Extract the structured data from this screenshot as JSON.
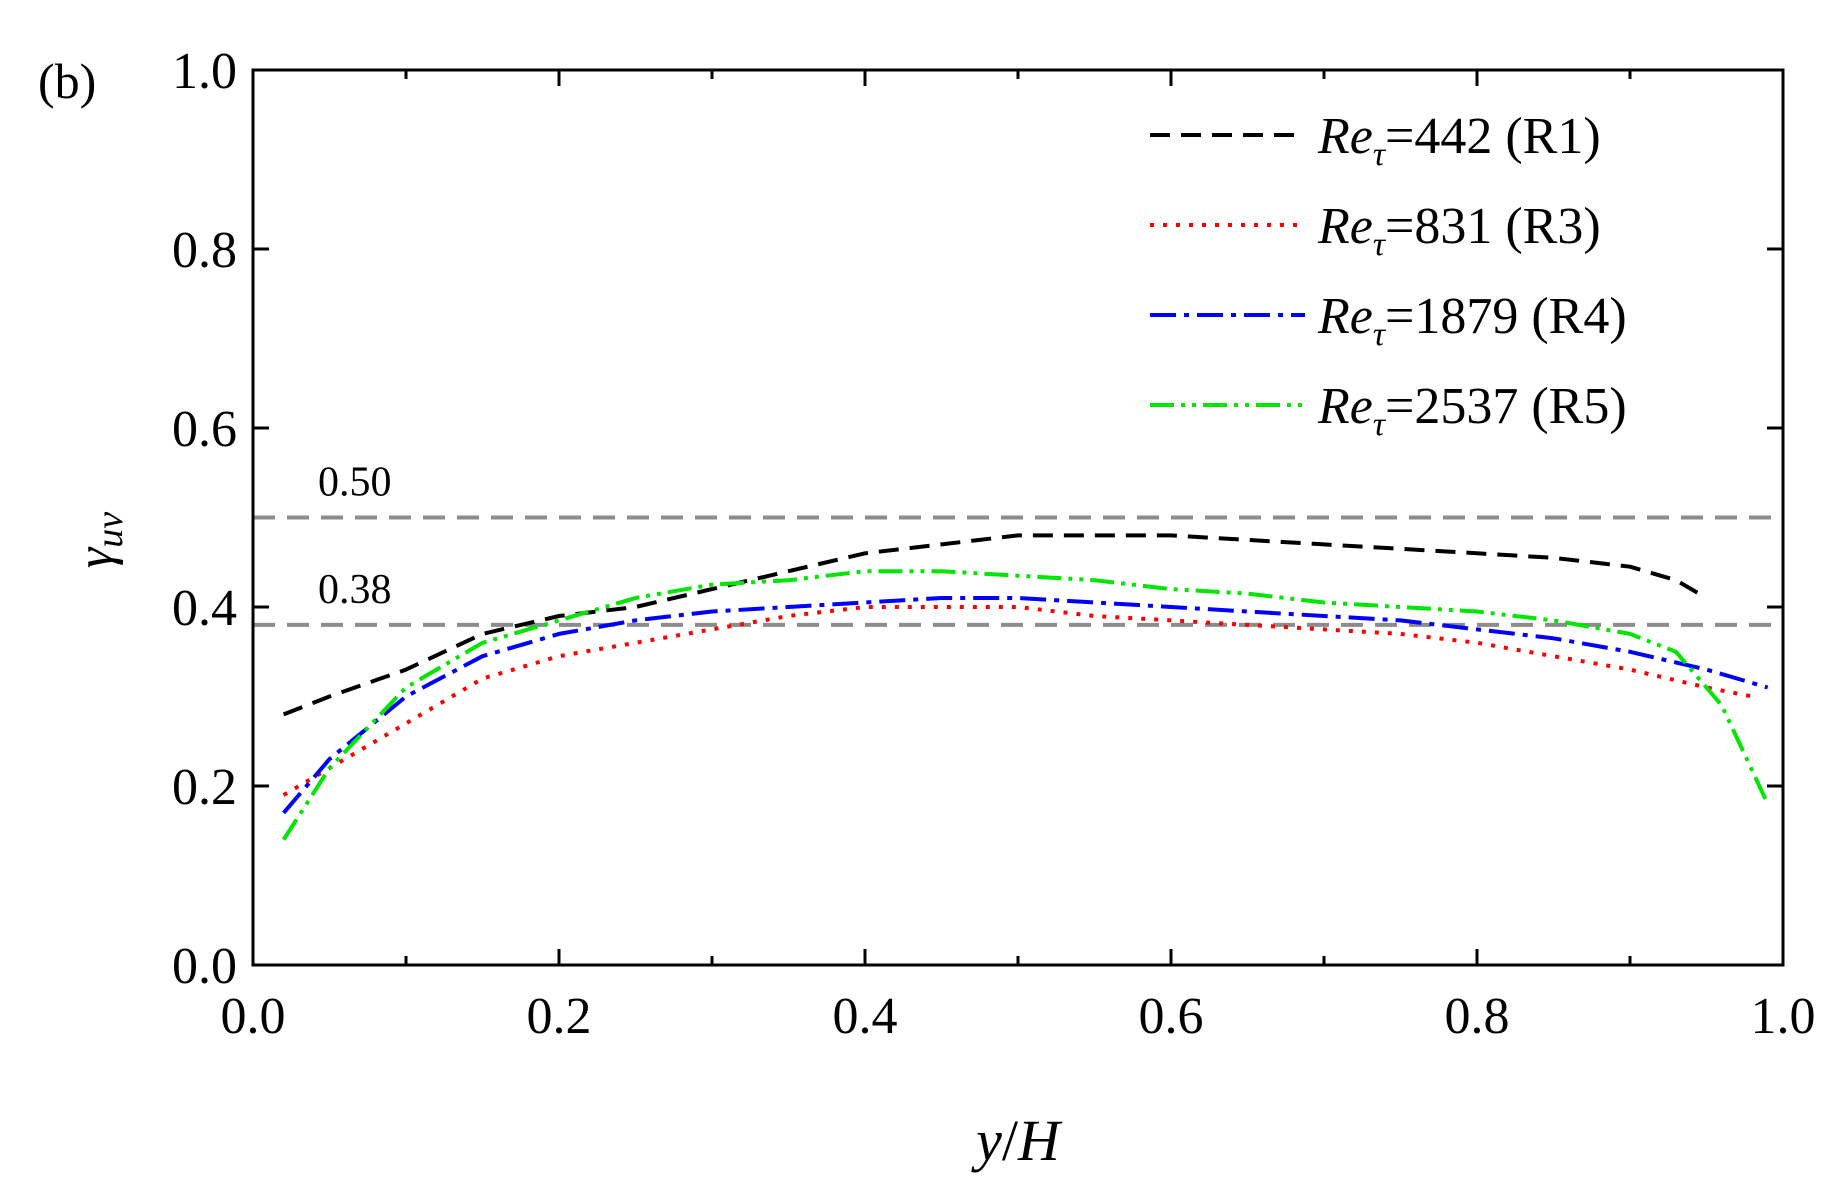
{
  "chart_data": {
    "type": "line",
    "panel_label": "(b)",
    "xlabel": "y/H",
    "ylabel": "γuv",
    "xlim": [
      0.0,
      1.0
    ],
    "ylim": [
      0.0,
      1.0
    ],
    "x_ticks": [
      "0.0",
      "0.2",
      "0.4",
      "0.6",
      "0.8",
      "1.0"
    ],
    "y_ticks": [
      "0.0",
      "0.2",
      "0.4",
      "0.6",
      "0.8",
      "1.0"
    ],
    "legend_position": "top-right",
    "reference_lines": [
      {
        "y": 0.5,
        "label": "0.50",
        "color": "#8c8c8c"
      },
      {
        "y": 0.38,
        "label": "0.38",
        "color": "#8c8c8c"
      }
    ],
    "series": [
      {
        "name": "Reτ=442 (R1)",
        "legend_suffix": "=442 (R1)",
        "color": "#000000",
        "style": "dash",
        "x": [
          0.02,
          0.05,
          0.1,
          0.15,
          0.2,
          0.25,
          0.3,
          0.35,
          0.4,
          0.45,
          0.5,
          0.55,
          0.6,
          0.65,
          0.7,
          0.75,
          0.8,
          0.85,
          0.9,
          0.93,
          0.95
        ],
        "values": [
          0.28,
          0.3,
          0.33,
          0.37,
          0.39,
          0.4,
          0.42,
          0.44,
          0.46,
          0.47,
          0.48,
          0.48,
          0.48,
          0.475,
          0.47,
          0.465,
          0.46,
          0.455,
          0.445,
          0.43,
          0.41
        ]
      },
      {
        "name": "Reτ=831 (R3)",
        "legend_suffix": "=831 (R3)",
        "color": "#ff0000",
        "style": "dot",
        "x": [
          0.02,
          0.05,
          0.1,
          0.15,
          0.2,
          0.25,
          0.3,
          0.35,
          0.4,
          0.45,
          0.5,
          0.55,
          0.6,
          0.65,
          0.7,
          0.75,
          0.8,
          0.85,
          0.9,
          0.95,
          0.98
        ],
        "values": [
          0.19,
          0.22,
          0.27,
          0.32,
          0.345,
          0.36,
          0.375,
          0.39,
          0.4,
          0.4,
          0.4,
          0.39,
          0.385,
          0.38,
          0.375,
          0.37,
          0.36,
          0.345,
          0.33,
          0.31,
          0.3
        ]
      },
      {
        "name": "Reτ=1879 (R4)",
        "legend_suffix": "=1879 (R4)",
        "color": "#0000ff",
        "style": "dashdot",
        "x": [
          0.02,
          0.05,
          0.1,
          0.15,
          0.2,
          0.25,
          0.3,
          0.35,
          0.4,
          0.45,
          0.5,
          0.55,
          0.6,
          0.65,
          0.7,
          0.75,
          0.8,
          0.85,
          0.9,
          0.95,
          0.99
        ],
        "values": [
          0.17,
          0.23,
          0.3,
          0.345,
          0.37,
          0.385,
          0.395,
          0.4,
          0.405,
          0.41,
          0.41,
          0.405,
          0.4,
          0.395,
          0.39,
          0.385,
          0.375,
          0.365,
          0.35,
          0.33,
          0.31
        ]
      },
      {
        "name": "Reτ=2537 (R5)",
        "legend_suffix": "=2537 (R5)",
        "color": "#00e600",
        "style": "dashdotdot",
        "x": [
          0.02,
          0.05,
          0.1,
          0.15,
          0.2,
          0.25,
          0.3,
          0.35,
          0.4,
          0.45,
          0.5,
          0.55,
          0.6,
          0.65,
          0.7,
          0.75,
          0.8,
          0.85,
          0.9,
          0.93,
          0.96,
          0.99
        ],
        "values": [
          0.14,
          0.22,
          0.31,
          0.36,
          0.385,
          0.41,
          0.425,
          0.43,
          0.44,
          0.44,
          0.435,
          0.43,
          0.42,
          0.415,
          0.405,
          0.4,
          0.395,
          0.385,
          0.37,
          0.35,
          0.29,
          0.18
        ]
      }
    ]
  }
}
